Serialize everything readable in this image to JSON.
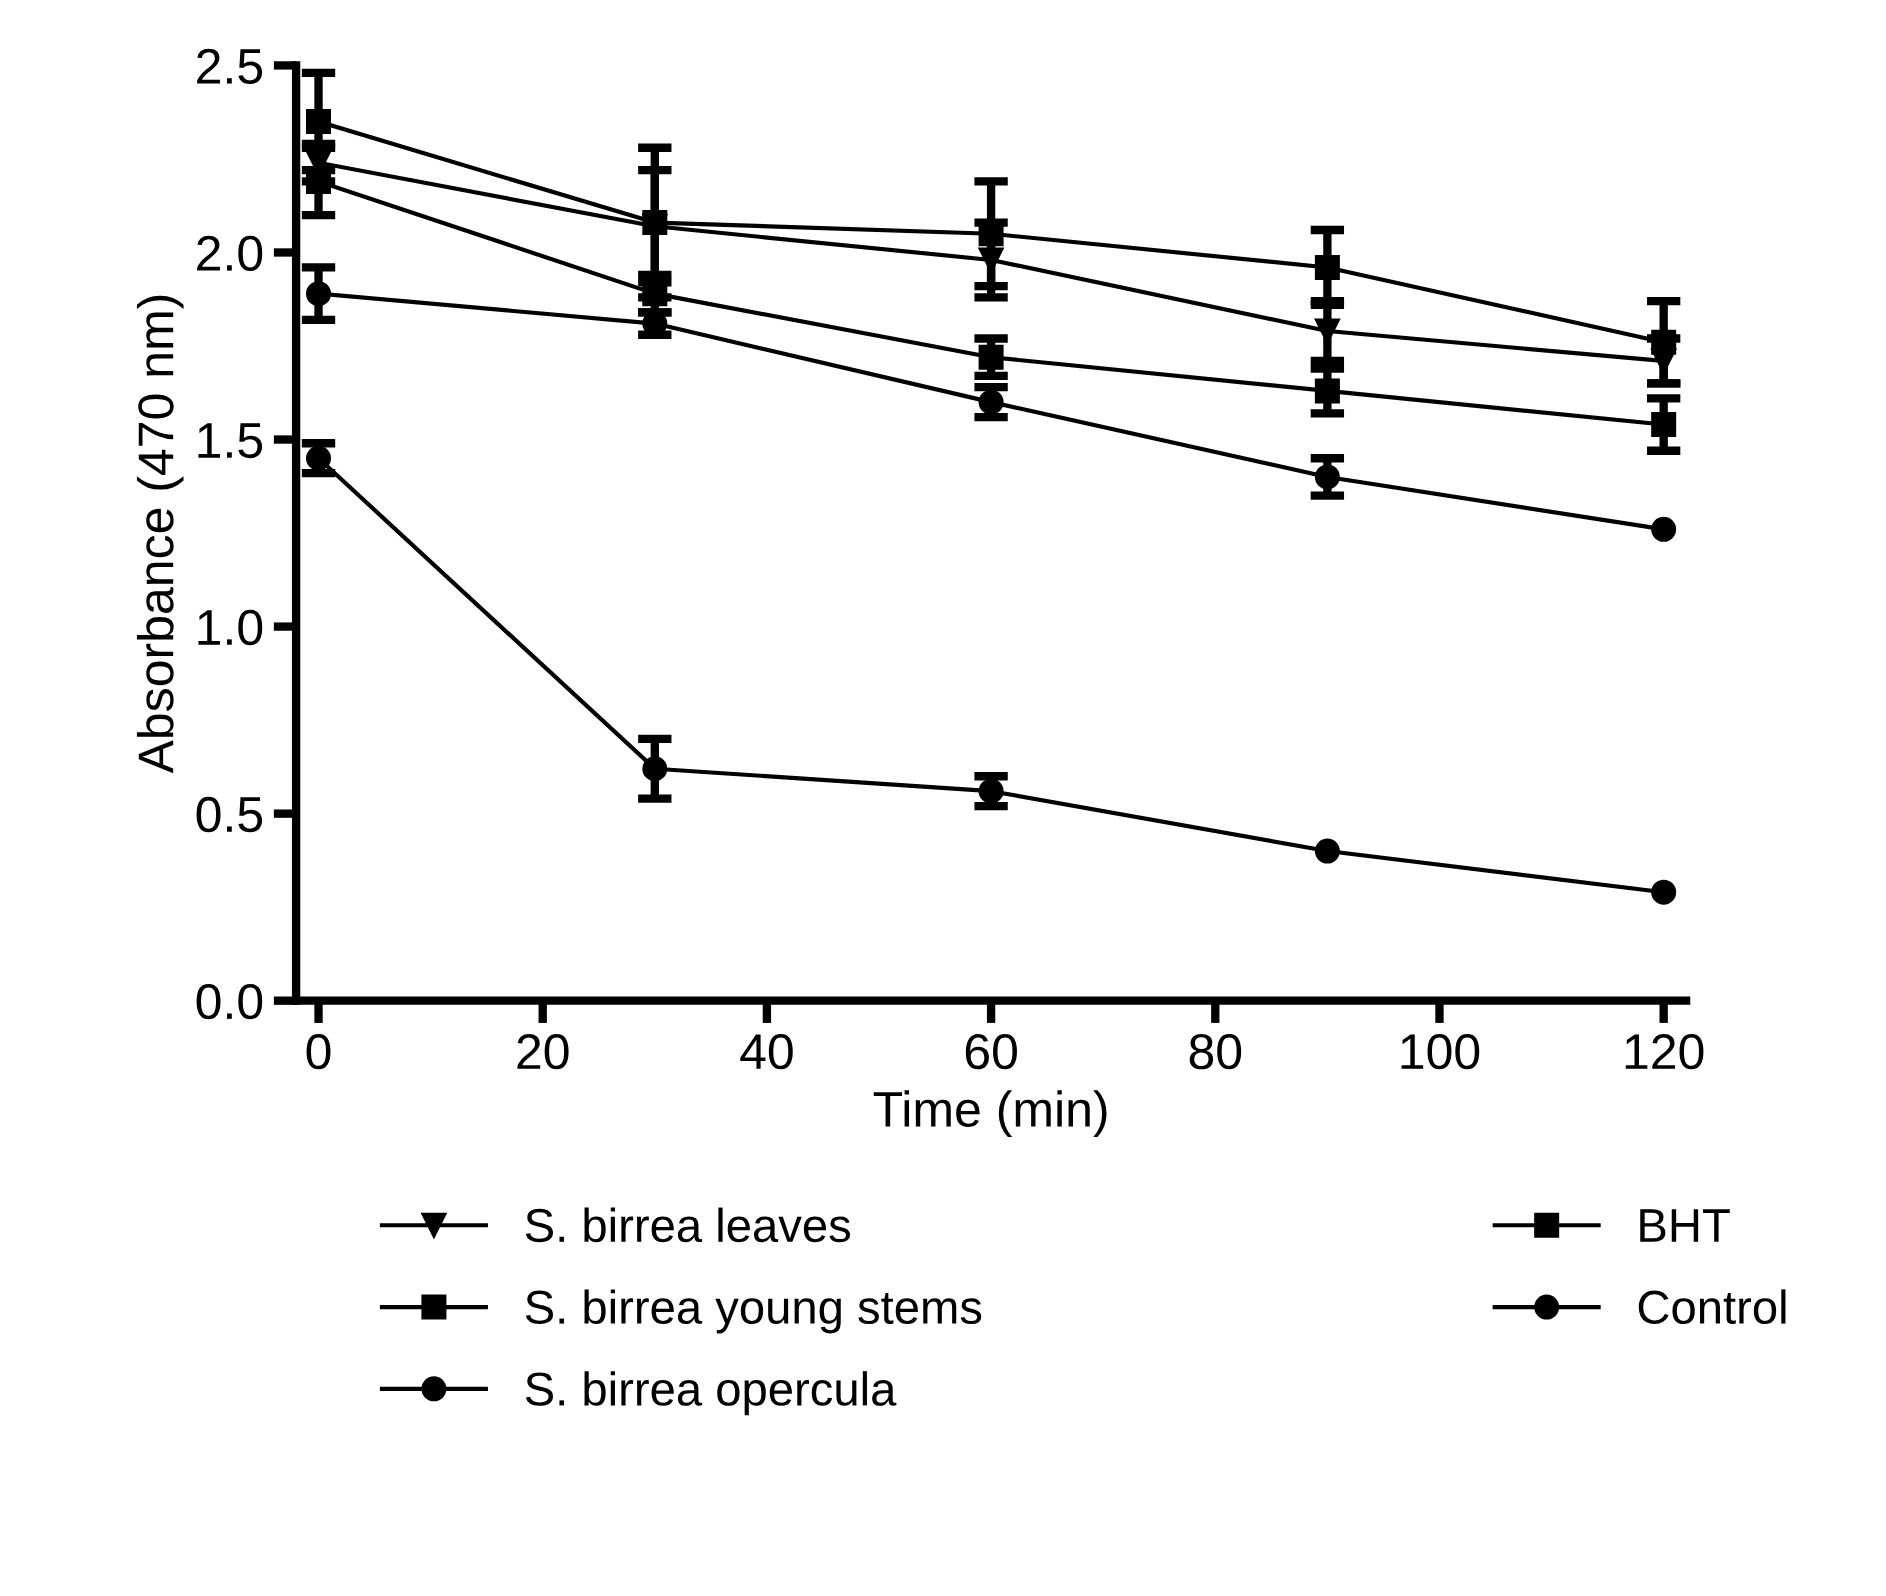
{
  "chart_data": {
    "type": "line",
    "xlabel": "Time (min)",
    "ylabel": "Absorbance (470 nm)",
    "x": [
      0,
      30,
      60,
      90,
      120
    ],
    "xlim": [
      -2,
      122
    ],
    "xticks": [
      0,
      20,
      40,
      60,
      80,
      100,
      120
    ],
    "ylim": [
      0,
      2.5
    ],
    "yticks": [
      {
        "value": 0,
        "label": "0.0"
      },
      0.5,
      {
        "value": 1,
        "label": "1.0"
      },
      1.5,
      {
        "value": 2,
        "label": "2.0"
      },
      2.5
    ],
    "grid": false,
    "legend": "bottom",
    "line_style": "solid",
    "series": [
      {
        "name": "S. birrea leaves",
        "color": "#000000",
        "marker": "triangle",
        "values": [
          2.24,
          2.07,
          1.98,
          1.79,
          1.71
        ],
        "errors": [
          0.05,
          0.15,
          0.1,
          0.08,
          0.06
        ]
      },
      {
        "name": "S. birrea young stems",
        "color": "#000000",
        "marker": "square",
        "values": [
          2.19,
          1.89,
          1.72,
          1.63,
          1.54
        ],
        "errors": [
          0.09,
          0.05,
          0.05,
          0.06,
          0.07
        ]
      },
      {
        "name": "S. birrea opercula",
        "color": "#000000",
        "marker": "circle",
        "values": [
          1.89,
          1.81,
          1.6,
          1.4,
          1.26
        ],
        "errors": [
          0.07,
          0.03,
          0.04,
          0.05,
          null
        ]
      },
      {
        "name": "BHT",
        "color": "#000000",
        "marker": "square",
        "values": [
          2.35,
          2.08,
          2.05,
          1.96,
          1.76
        ],
        "errors": [
          0.13,
          0.2,
          0.14,
          0.1,
          0.11
        ]
      },
      {
        "name": "Control",
        "color": "#000000",
        "marker": "circle",
        "values": [
          1.45,
          0.62,
          0.56,
          0.4,
          0.29
        ],
        "errors": [
          0.04,
          0.08,
          0.04,
          null,
          null
        ]
      }
    ]
  }
}
